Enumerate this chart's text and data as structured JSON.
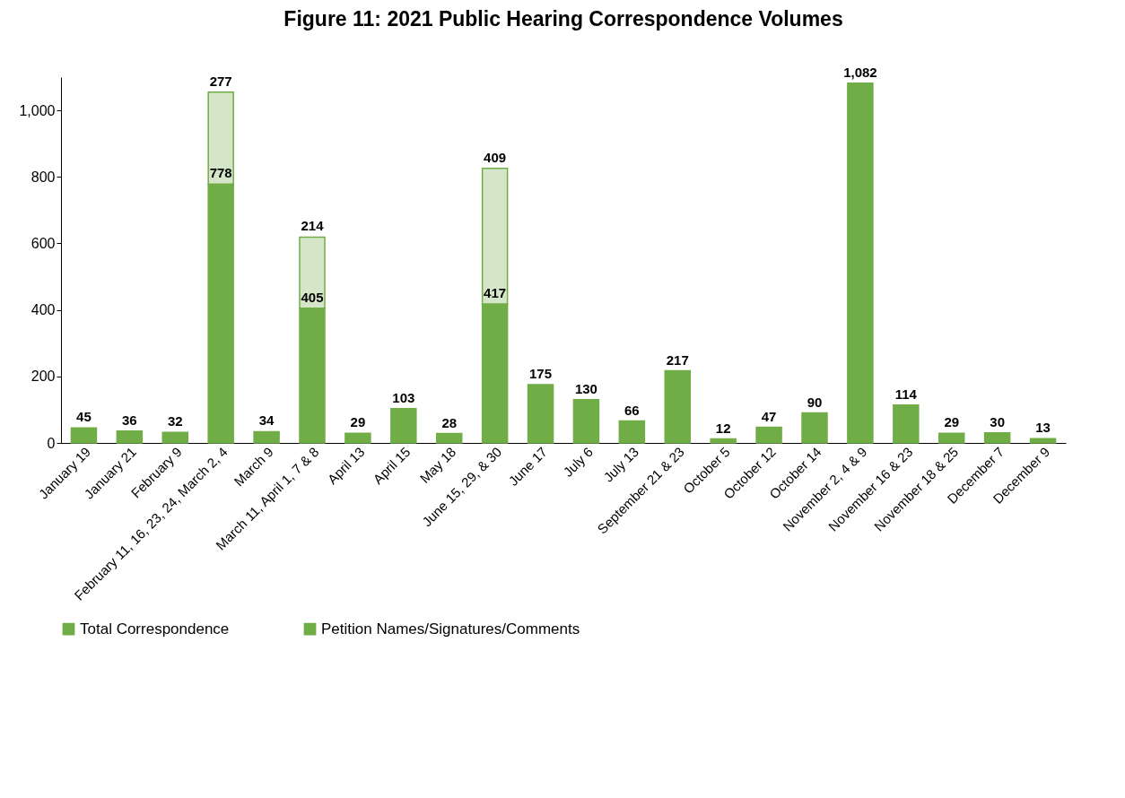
{
  "chart_data": {
    "type": "bar",
    "title": "Figure 11: 2021 Public Hearing Correspondence Volumes",
    "categories": [
      "January 19",
      "January 21",
      "February 9",
      "February 11, 16, 23, 24, March 2, 4",
      "March 9",
      "March 11, April 1, 7 & 8",
      "April 13",
      "April 15",
      "May 18",
      "June 15, 29, & 30",
      "June 17",
      "July 6",
      "July 13",
      "September 21 & 23",
      "October 5",
      "October 12",
      "October 14",
      "November 2, 4 & 9",
      "November 16 & 23",
      "November 18 & 25",
      "December 7",
      "December 9"
    ],
    "series": [
      {
        "name": "Total Correspondence",
        "color": "#70ad47",
        "values": [
          45,
          36,
          32,
          778,
          34,
          405,
          29,
          103,
          28,
          417,
          175,
          130,
          66,
          217,
          12,
          47,
          90,
          1082,
          114,
          29,
          30,
          13
        ],
        "value_labels": [
          "45",
          "36",
          "32",
          "778",
          "34",
          "405",
          "29",
          "103",
          "28",
          "417",
          "175",
          "130",
          "66",
          "217",
          "12",
          "47",
          "90",
          "1,082",
          "114",
          "29",
          "30",
          "13"
        ]
      },
      {
        "name": "Petition Names/Signatures/Comments",
        "color": "#70ad47",
        "values": [
          null,
          null,
          null,
          277,
          null,
          214,
          null,
          null,
          null,
          409,
          null,
          null,
          null,
          null,
          null,
          null,
          null,
          null,
          null,
          null,
          null,
          null
        ],
        "value_labels": [
          null,
          null,
          null,
          "277",
          null,
          "214",
          null,
          null,
          null,
          "409",
          null,
          null,
          null,
          null,
          null,
          null,
          null,
          null,
          null,
          null,
          null,
          null
        ]
      }
    ],
    "stacked": true,
    "legend": "bottom",
    "grid": false,
    "ylim": [
      0,
      1100
    ],
    "yticks": [
      0,
      200,
      400,
      600,
      800,
      {
        "value": 1000,
        "label": "1,000"
      }
    ]
  }
}
